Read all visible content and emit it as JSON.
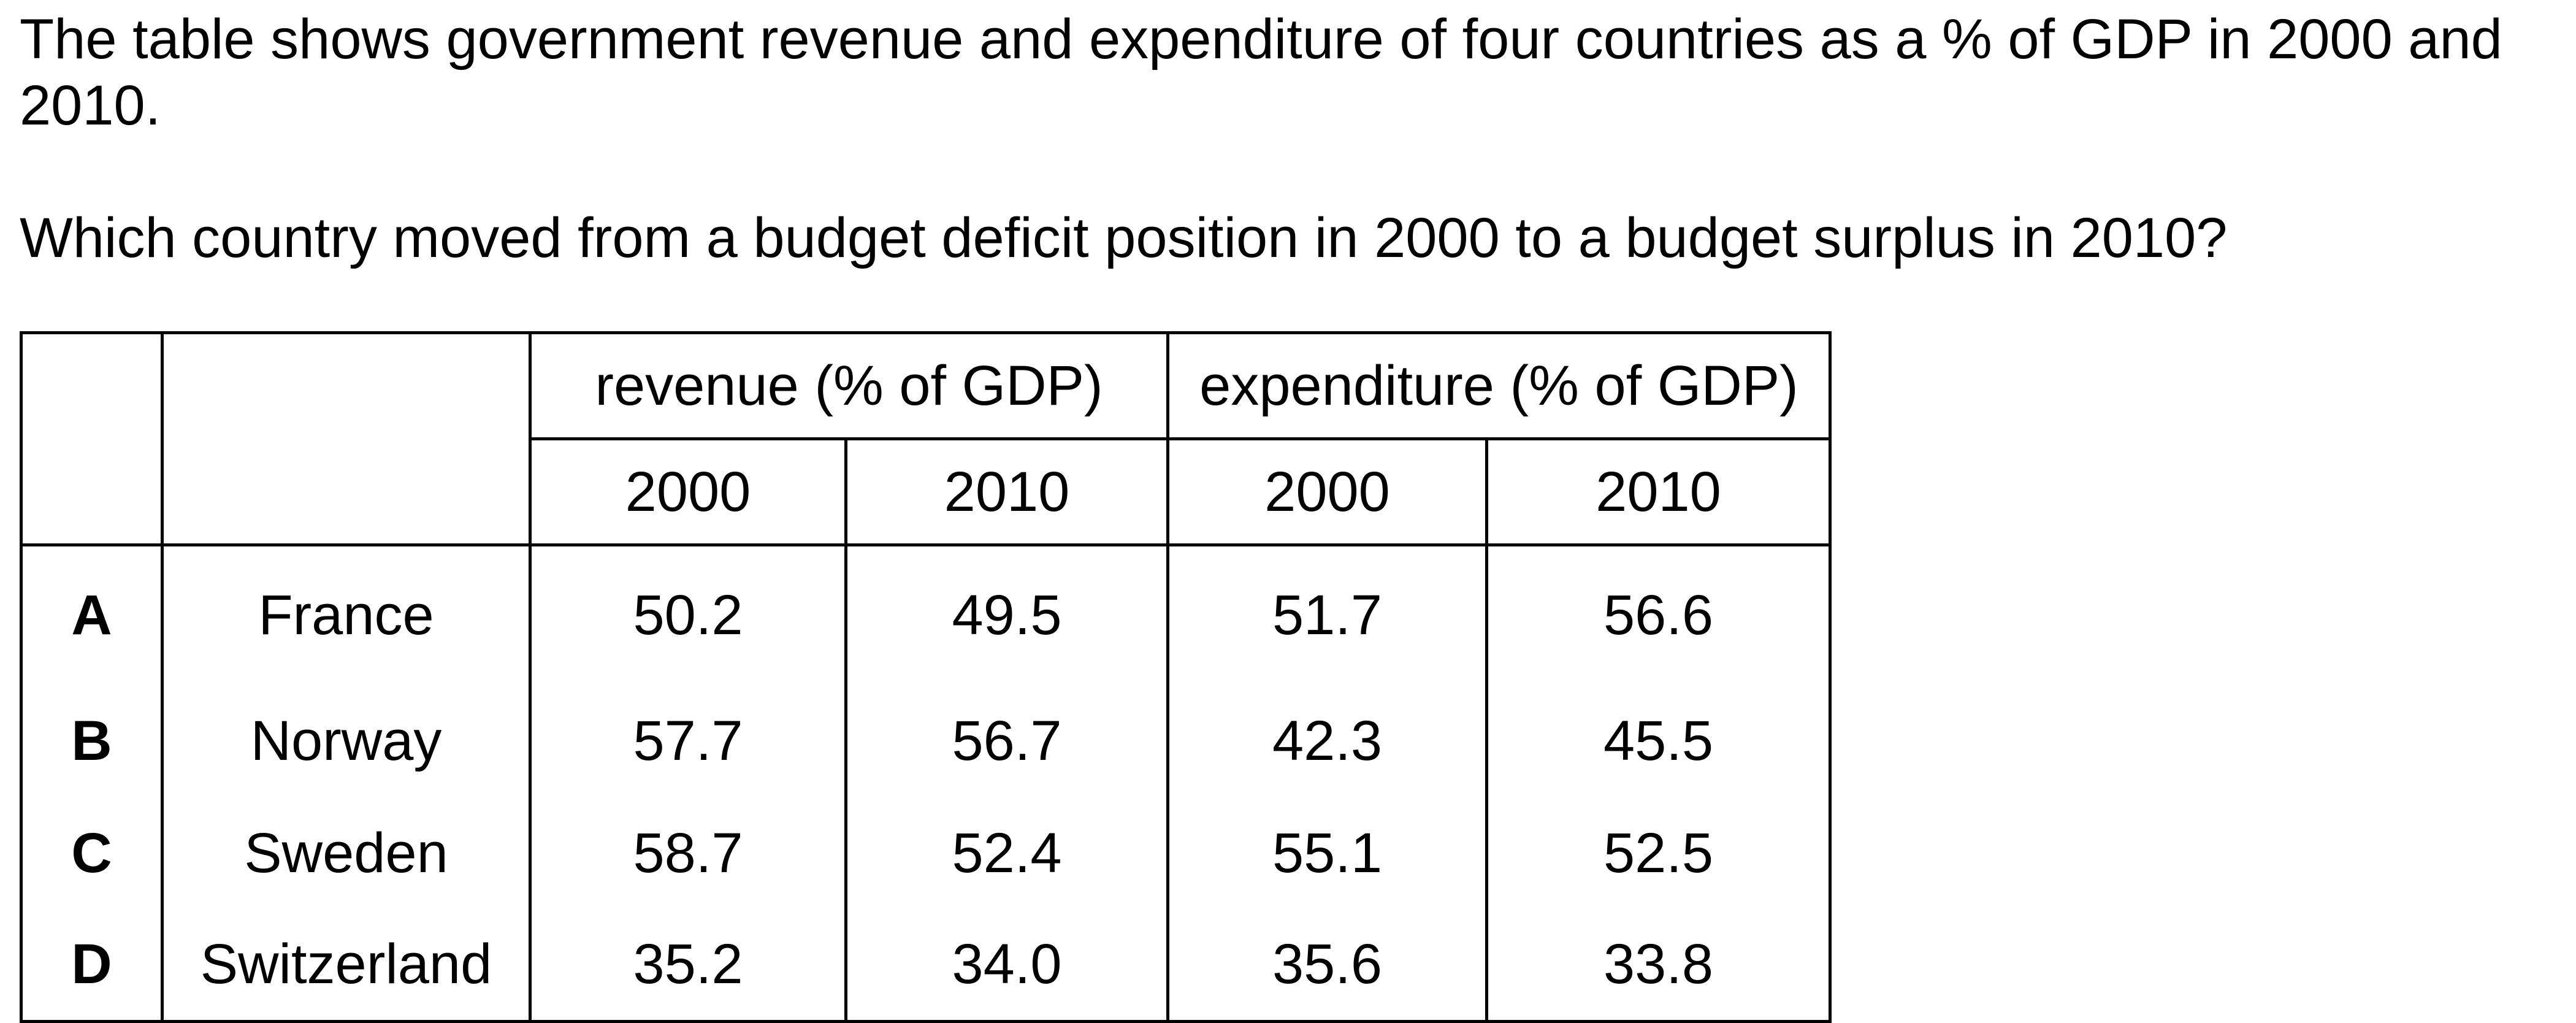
{
  "question": {
    "line1": "The table shows government revenue and expenditure of four countries as a % of GDP in 2000 and 2010.",
    "line2": "Which country moved from a budget deficit position in 2000 to a budget surplus in 2010?"
  },
  "table": {
    "group_headers": [
      "revenue (% of GDP)",
      "expenditure (% of GDP)"
    ],
    "year_headers": [
      "2000",
      "2010",
      "2000",
      "2010"
    ],
    "rows": [
      {
        "option": "A",
        "country": "France",
        "values": [
          "50.2",
          "49.5",
          "51.7",
          "56.6"
        ]
      },
      {
        "option": "B",
        "country": "Norway",
        "values": [
          "57.7",
          "56.7",
          "42.3",
          "45.5"
        ]
      },
      {
        "option": "C",
        "country": "Sweden",
        "values": [
          "58.7",
          "52.4",
          "55.1",
          "52.5"
        ]
      },
      {
        "option": "D",
        "country": "Switzerland",
        "values": [
          "35.2",
          "34.0",
          "35.6",
          "33.8"
        ]
      }
    ]
  }
}
